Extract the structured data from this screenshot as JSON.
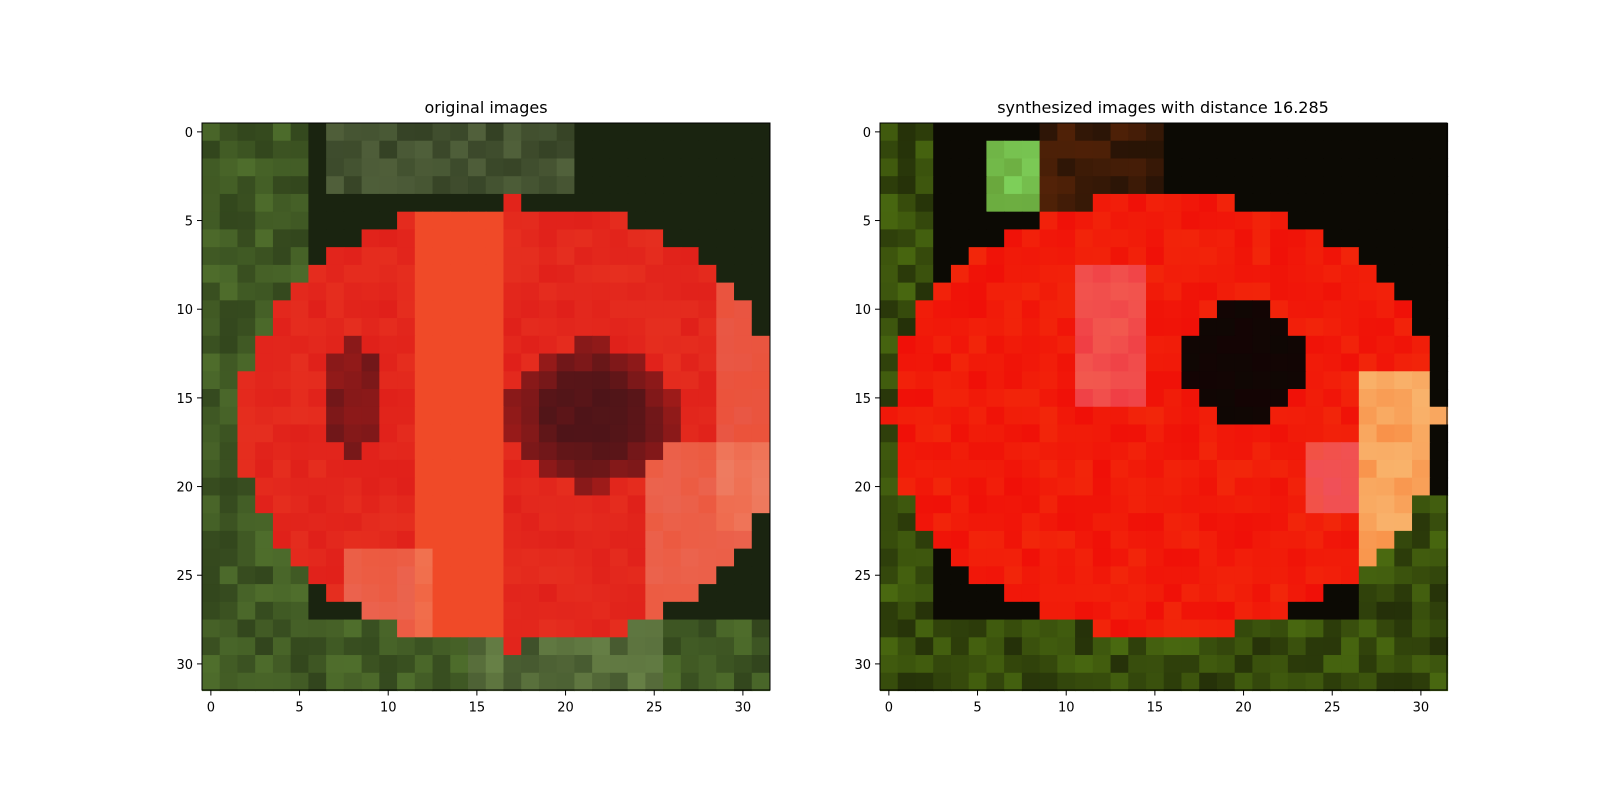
{
  "chart_data": [
    {
      "type": "heatmap",
      "title": "original images",
      "xlabel": "",
      "ylabel": "",
      "xlim": [
        -0.5,
        31.5
      ],
      "ylim": [
        31.5,
        -0.5
      ],
      "xticks": [
        0,
        5,
        10,
        15,
        20,
        25,
        30
      ],
      "yticks": [
        0,
        5,
        10,
        15,
        20,
        25,
        30
      ],
      "grid": false,
      "legend": "none",
      "image_size": [
        32,
        32
      ],
      "colors": {
        "background_dark": "#1a2410",
        "foliage_green": "#4f6e2c",
        "petal_orange": "#f04a28",
        "petal_red": "#e0201a",
        "center_dark": "#4a1418",
        "highlight_peach": "#f39a78",
        "muted_sage": "#8aa068"
      }
    },
    {
      "type": "heatmap",
      "title": "synthesized images with distance 16.285",
      "xlabel": "",
      "ylabel": "",
      "xlim": [
        -0.5,
        31.5
      ],
      "ylim": [
        31.5,
        -0.5
      ],
      "xticks": [
        0,
        5,
        10,
        15,
        20,
        25,
        30
      ],
      "yticks": [
        0,
        5,
        10,
        15,
        20,
        25,
        30
      ],
      "grid": false,
      "legend": "none",
      "image_size": [
        32,
        32
      ],
      "colors": {
        "background_dark": "#0c0a04",
        "foliage_green": "#4a6a10",
        "petal_red": "#f01008",
        "petal_orange": "#f85a10",
        "center_dark": "#140404",
        "highlight_cream": "#fae6a0",
        "bright_green": "#7ed05a",
        "pink": "#f06a80"
      }
    }
  ]
}
